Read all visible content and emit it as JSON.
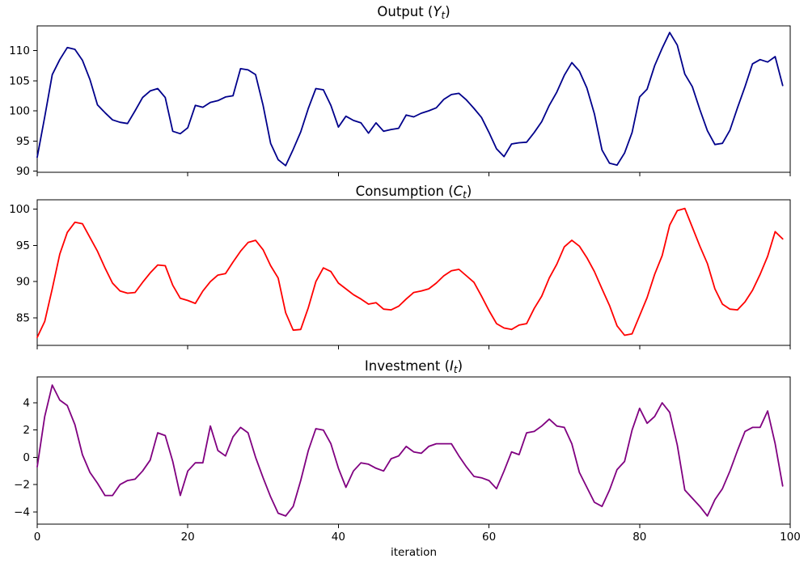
{
  "figure": {
    "background": "#ffffff",
    "xlabel": "iteration"
  },
  "chart_data": [
    {
      "type": "line",
      "title": {
        "text": "Output (Yt)",
        "prefix": "Output (",
        "variable": "Y",
        "subscript": "t",
        "suffix": ")"
      },
      "color": "#00008b",
      "xlabel": "",
      "ylabel": "",
      "xlim": [
        0,
        100
      ],
      "ylim": [
        89.8,
        114.1
      ],
      "xticks": [
        0,
        20,
        40,
        60,
        80,
        100
      ],
      "xtick_labels": [
        "0",
        "20",
        "40",
        "60",
        "80",
        "100"
      ],
      "yticks": [
        90,
        95,
        100,
        105,
        110
      ],
      "ytick_labels": [
        "90",
        "95",
        "100",
        "105",
        "110"
      ],
      "show_x_tick_labels": false,
      "grid": false,
      "x_start": 0,
      "x_step": 1,
      "values": [
        92.3,
        99.0,
        106.0,
        108.5,
        110.5,
        110.2,
        108.4,
        105.2,
        101.0,
        99.7,
        98.5,
        98.1,
        97.9,
        100.0,
        102.2,
        103.3,
        103.7,
        102.2,
        96.6,
        96.2,
        97.2,
        100.9,
        100.6,
        101.4,
        101.7,
        102.3,
        102.5,
        107.0,
        106.8,
        106.0,
        100.9,
        94.6,
        91.9,
        90.9,
        93.6,
        96.5,
        100.4,
        103.7,
        103.5,
        100.9,
        97.3,
        99.1,
        98.4,
        98.0,
        96.3,
        98.0,
        96.6,
        96.9,
        97.1,
        99.3,
        99.0,
        99.6,
        100.0,
        100.5,
        101.9,
        102.7,
        102.9,
        101.8,
        100.4,
        98.9,
        96.4,
        93.7,
        92.4,
        94.5,
        94.7,
        94.8,
        96.4,
        98.2,
        100.9,
        103.1,
        105.9,
        108.0,
        106.6,
        103.8,
        99.5,
        93.5,
        91.3,
        91.0,
        93.0,
        96.4,
        102.3,
        103.6,
        107.5,
        110.4,
        113.0,
        110.9,
        106.1,
        104.0,
        100.2,
        96.7,
        94.4,
        94.6,
        96.8,
        100.5,
        104.0,
        107.8,
        108.5,
        108.1,
        109.0,
        104.2
      ]
    },
    {
      "type": "line",
      "title": {
        "text": "Consumption (Ct)",
        "prefix": "Consumption (",
        "variable": "C",
        "subscript": "t",
        "suffix": ")"
      },
      "color": "#ff0000",
      "xlabel": "",
      "ylabel": "",
      "xlim": [
        0,
        100
      ],
      "ylim": [
        81.2,
        101.3
      ],
      "xticks": [
        0,
        20,
        40,
        60,
        80,
        100
      ],
      "xtick_labels": [
        "0",
        "20",
        "40",
        "60",
        "80",
        "100"
      ],
      "yticks": [
        85,
        90,
        95,
        100
      ],
      "ytick_labels": [
        "85",
        "90",
        "95",
        "100"
      ],
      "show_x_tick_labels": false,
      "grid": false,
      "x_start": 0,
      "x_step": 1,
      "values": [
        82.3,
        84.5,
        89.0,
        93.8,
        96.8,
        98.2,
        98.0,
        96.1,
        94.2,
        91.9,
        89.8,
        88.7,
        88.4,
        88.5,
        89.9,
        91.2,
        92.3,
        92.2,
        89.5,
        87.7,
        87.4,
        87.0,
        88.7,
        90.0,
        90.9,
        91.1,
        92.7,
        94.2,
        95.4,
        95.7,
        94.4,
        92.2,
        90.5,
        85.7,
        83.3,
        83.4,
        86.4,
        90.0,
        91.9,
        91.4,
        89.8,
        89.0,
        88.2,
        87.6,
        86.9,
        87.1,
        86.2,
        86.1,
        86.6,
        87.6,
        88.5,
        88.7,
        89.0,
        89.8,
        90.8,
        91.5,
        91.7,
        90.8,
        89.9,
        88.0,
        86.0,
        84.2,
        83.6,
        83.4,
        84.0,
        84.2,
        86.3,
        88.0,
        90.5,
        92.4,
        94.8,
        95.7,
        94.9,
        93.3,
        91.4,
        89.0,
        86.7,
        83.9,
        82.6,
        82.8,
        85.3,
        87.8,
        91.0,
        93.6,
        97.8,
        99.8,
        100.1,
        97.5,
        94.9,
        92.5,
        89.0,
        86.9,
        86.2,
        86.1,
        87.2,
        88.8,
        91.0,
        93.5,
        96.9,
        95.9
      ]
    },
    {
      "type": "line",
      "title": {
        "text": "Investment (It)",
        "prefix": "Investment (",
        "variable": "I",
        "subscript": "t",
        "suffix": ")"
      },
      "color": "#800080",
      "xlabel": "iteration",
      "ylabel": "",
      "xlim": [
        0,
        100
      ],
      "ylim": [
        -4.9,
        5.9
      ],
      "xticks": [
        0,
        20,
        40,
        60,
        80,
        100
      ],
      "xtick_labels": [
        "0",
        "20",
        "40",
        "60",
        "80",
        "100"
      ],
      "yticks": [
        -4,
        -2,
        0,
        2,
        4
      ],
      "ytick_labels": [
        "−4",
        "−2",
        "0",
        "2",
        "4"
      ],
      "show_x_tick_labels": true,
      "grid": false,
      "x_start": 0,
      "x_step": 1,
      "values": [
        -0.7,
        3.0,
        5.3,
        4.2,
        3.8,
        2.4,
        0.2,
        -1.1,
        -1.9,
        -2.8,
        -2.8,
        -2.0,
        -1.7,
        -1.6,
        -1.0,
        -0.2,
        1.8,
        1.6,
        -0.3,
        -2.8,
        -1.0,
        -0.4,
        -0.4,
        2.3,
        0.5,
        0.1,
        1.5,
        2.2,
        1.8,
        0.0,
        -1.5,
        -2.9,
        -4.1,
        -4.3,
        -3.6,
        -1.7,
        0.5,
        2.1,
        2.0,
        1.0,
        -0.8,
        -2.2,
        -1.0,
        -0.4,
        -0.5,
        -0.8,
        -1.0,
        -0.1,
        0.1,
        0.8,
        0.4,
        0.3,
        0.8,
        1.0,
        1.0,
        1.0,
        0.1,
        -0.7,
        -1.4,
        -1.5,
        -1.7,
        -2.3,
        -1.0,
        0.4,
        0.2,
        1.8,
        1.9,
        2.3,
        2.8,
        2.3,
        2.2,
        1.0,
        -1.1,
        -2.2,
        -3.3,
        -3.6,
        -2.4,
        -0.9,
        -0.3,
        2.0,
        3.6,
        2.5,
        3.0,
        4.0,
        3.3,
        0.9,
        -2.4,
        -3.0,
        -3.6,
        -4.3,
        -3.1,
        -2.3,
        -1.0,
        0.5,
        1.9,
        2.2,
        2.2,
        3.4,
        1.0,
        -2.1
      ]
    }
  ]
}
